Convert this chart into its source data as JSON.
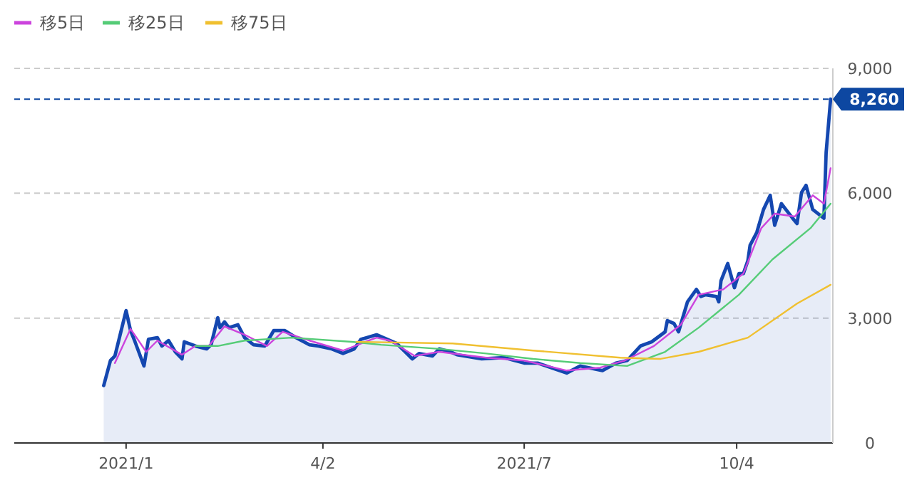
{
  "chart_data": {
    "type": "line",
    "legend": "top left",
    "grid": "y",
    "xlim": [
      "2020-11-15",
      "2021-11-16"
    ],
    "ylim": [
      0,
      9000
    ],
    "xticks": [
      {
        "value": "2021-01-04",
        "label": "2021/1"
      },
      {
        "value": "2021-04-02",
        "label": "4/2"
      },
      {
        "value": "2021-07-01",
        "label": "2021/7"
      },
      {
        "value": "2021-10-04",
        "label": "10/4"
      }
    ],
    "yticks": [
      0,
      {
        "value": 3000,
        "label": "3,000"
      },
      {
        "value": 6000,
        "label": "6,000"
      },
      {
        "value": 9000,
        "label": "9,000"
      }
    ],
    "ref_lines": [
      {
        "axis": "y",
        "value": 8260,
        "label": "8,260",
        "color": "#0d47a1",
        "line_style": "dashed"
      }
    ],
    "series": [
      {
        "type": "area",
        "color": "#1447b0",
        "x": [
          "2020-12-25",
          "2020-12-28",
          "2020-12-30",
          "2021-01-04",
          "2021-01-06",
          "2021-01-08",
          "2021-01-12",
          "2021-01-14",
          "2021-01-18",
          "2021-01-20",
          "2021-01-23",
          "2021-01-26",
          "2021-01-29",
          "2021-01-30",
          "2021-02-04",
          "2021-02-09",
          "2021-02-11",
          "2021-02-14",
          "2021-02-15",
          "2021-02-17",
          "2021-02-19",
          "2021-02-23",
          "2021-02-26",
          "2021-03-02",
          "2021-03-07",
          "2021-03-11",
          "2021-03-16",
          "2021-03-21",
          "2021-03-27",
          "2021-03-31",
          "2021-04-06",
          "2021-04-11",
          "2021-04-16",
          "2021-04-19",
          "2021-04-26",
          "2021-05-05",
          "2021-05-12",
          "2021-05-15",
          "2021-05-21",
          "2021-05-24",
          "2021-05-29",
          "2021-06-01",
          "2021-06-12",
          "2021-06-22",
          "2021-07-01",
          "2021-07-07",
          "2021-07-13",
          "2021-07-20",
          "2021-07-26",
          "2021-08-05",
          "2021-08-11",
          "2021-08-16",
          "2021-08-22",
          "2021-08-27",
          "2021-09-02",
          "2021-09-03",
          "2021-09-06",
          "2021-09-08",
          "2021-09-12",
          "2021-09-16",
          "2021-09-18",
          "2021-09-20",
          "2021-09-25",
          "2021-09-26",
          "2021-09-27",
          "2021-09-30",
          "2021-10-03",
          "2021-10-05",
          "2021-10-07",
          "2021-10-09",
          "2021-10-10",
          "2021-10-13",
          "2021-10-16",
          "2021-10-19",
          "2021-10-21",
          "2021-10-24",
          "2021-10-29",
          "2021-10-31",
          "2021-11-02",
          "2021-11-04",
          "2021-11-07",
          "2021-11-12",
          "2021-11-13",
          "2021-11-15"
        ],
        "values": [
          1380,
          1980,
          2090,
          3180,
          2700,
          2430,
          1850,
          2490,
          2530,
          2330,
          2460,
          2190,
          2020,
          2430,
          2330,
          2260,
          2360,
          3010,
          2770,
          2910,
          2770,
          2840,
          2530,
          2360,
          2330,
          2700,
          2700,
          2530,
          2360,
          2330,
          2260,
          2150,
          2260,
          2490,
          2600,
          2390,
          2020,
          2150,
          2090,
          2260,
          2190,
          2120,
          2020,
          2050,
          1920,
          1920,
          1810,
          1680,
          1850,
          1740,
          1920,
          1980,
          2330,
          2430,
          2670,
          2940,
          2870,
          2670,
          3390,
          3690,
          3520,
          3560,
          3520,
          3390,
          3900,
          4310,
          3730,
          4070,
          4070,
          4380,
          4750,
          5060,
          5610,
          5950,
          5230,
          5750,
          5400,
          5270,
          6020,
          6190,
          5610,
          5400,
          6980,
          8260
        ]
      },
      {
        "name": "移5日",
        "color": "#cc44dd",
        "x": [
          "2020-12-30",
          "2021-01-06",
          "2021-01-13",
          "2021-01-18",
          "2021-01-29",
          "2021-02-04",
          "2021-02-10",
          "2021-02-17",
          "2021-02-26",
          "2021-03-08",
          "2021-03-15",
          "2021-03-27",
          "2021-04-11",
          "2021-04-21",
          "2021-04-26",
          "2021-05-02",
          "2021-05-13",
          "2021-05-24",
          "2021-06-14",
          "2021-07-01",
          "2021-07-20",
          "2021-08-04",
          "2021-08-15",
          "2021-08-28",
          "2021-09-09",
          "2021-09-17",
          "2021-09-28",
          "2021-10-07",
          "2021-10-15",
          "2021-10-21",
          "2021-10-30",
          "2021-11-07",
          "2021-11-12",
          "2021-11-15"
        ],
        "values": [
          1920,
          2740,
          2190,
          2460,
          2120,
          2330,
          2330,
          2800,
          2600,
          2330,
          2670,
          2460,
          2220,
          2430,
          2530,
          2460,
          2090,
          2190,
          2050,
          1980,
          1740,
          1810,
          1980,
          2330,
          2840,
          3560,
          3690,
          4070,
          5160,
          5510,
          5440,
          5950,
          5750,
          6600
        ]
      },
      {
        "name": "移25日",
        "color": "#55cc77",
        "x": [
          "2021-02-04",
          "2021-02-14",
          "2021-02-26",
          "2021-03-19",
          "2021-04-15",
          "2021-04-28",
          "2021-05-24",
          "2021-06-14",
          "2021-07-05",
          "2021-07-26",
          "2021-08-16",
          "2021-09-02",
          "2021-09-17",
          "2021-10-05",
          "2021-10-20",
          "2021-11-06",
          "2021-11-15"
        ],
        "values": [
          2330,
          2330,
          2460,
          2530,
          2430,
          2360,
          2260,
          2150,
          2020,
          1920,
          1850,
          2190,
          2770,
          3560,
          4410,
          5160,
          5750
        ]
      },
      {
        "name": "移75日",
        "color": "#f0c030",
        "x": [
          "2021-04-17",
          "2021-05-30",
          "2021-07-05",
          "2021-08-13",
          "2021-08-31",
          "2021-09-17",
          "2021-10-09",
          "2021-10-31",
          "2021-11-15"
        ],
        "values": [
          2430,
          2390,
          2220,
          2050,
          2020,
          2190,
          2530,
          3350,
          3800
        ]
      }
    ]
  }
}
